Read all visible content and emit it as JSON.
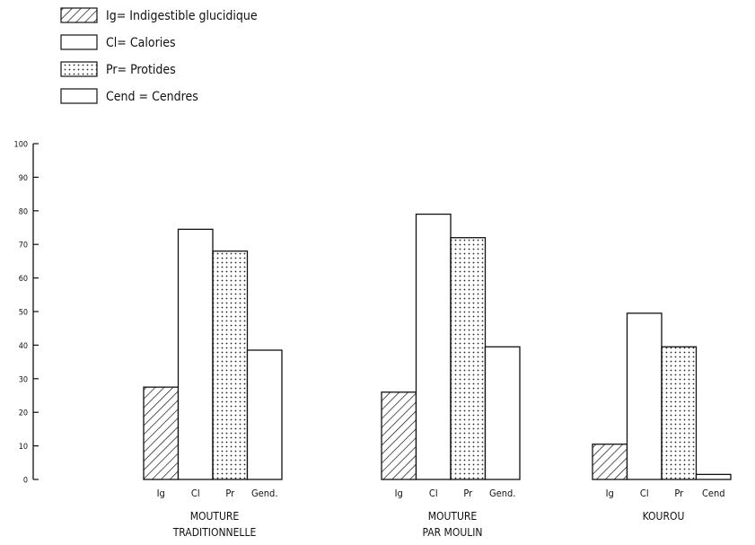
{
  "legend": [
    {
      "pattern": "hatch",
      "label": "Ig= Indigestible glucidique"
    },
    {
      "pattern": "blank",
      "label": "Cl= Calories"
    },
    {
      "pattern": "dots",
      "label": "Pr= Protides"
    },
    {
      "pattern": "blank",
      "label": "Cend = Cendres"
    }
  ],
  "chart_data": {
    "type": "bar",
    "title": "",
    "xlabel": "",
    "ylabel": "",
    "ylim": [
      0,
      100
    ],
    "yticks": [
      0,
      10,
      20,
      30,
      40,
      50,
      60,
      70,
      80,
      90,
      100
    ],
    "grid": false,
    "legend_position": "top-left",
    "groups": [
      {
        "label_lines": [
          "MOUTURE",
          "TRADITIONNELLE"
        ],
        "bars": [
          {
            "category": "Ig",
            "value": 27.5,
            "pattern": "hatch"
          },
          {
            "category": "Cl",
            "value": 74.5,
            "pattern": "blank"
          },
          {
            "category": "Pr",
            "value": 68,
            "pattern": "dots"
          },
          {
            "category": "Gend.",
            "value": 38.5,
            "pattern": "blank"
          }
        ]
      },
      {
        "label_lines": [
          "MOUTURE",
          "PAR MOULIN"
        ],
        "bars": [
          {
            "category": "Ig",
            "value": 26,
            "pattern": "hatch"
          },
          {
            "category": "Cl",
            "value": 79,
            "pattern": "blank"
          },
          {
            "category": "Pr",
            "value": 72,
            "pattern": "dots"
          },
          {
            "category": "Gend.",
            "value": 39.5,
            "pattern": "blank"
          }
        ]
      },
      {
        "label_lines": [
          "KOUROU"
        ],
        "bars": [
          {
            "category": "Ig",
            "value": 10.5,
            "pattern": "hatch"
          },
          {
            "category": "Cl",
            "value": 49.5,
            "pattern": "blank"
          },
          {
            "category": "Pr",
            "value": 39.5,
            "pattern": "dots"
          },
          {
            "category": "Cend",
            "value": 1.5,
            "pattern": "blank"
          }
        ]
      }
    ]
  }
}
